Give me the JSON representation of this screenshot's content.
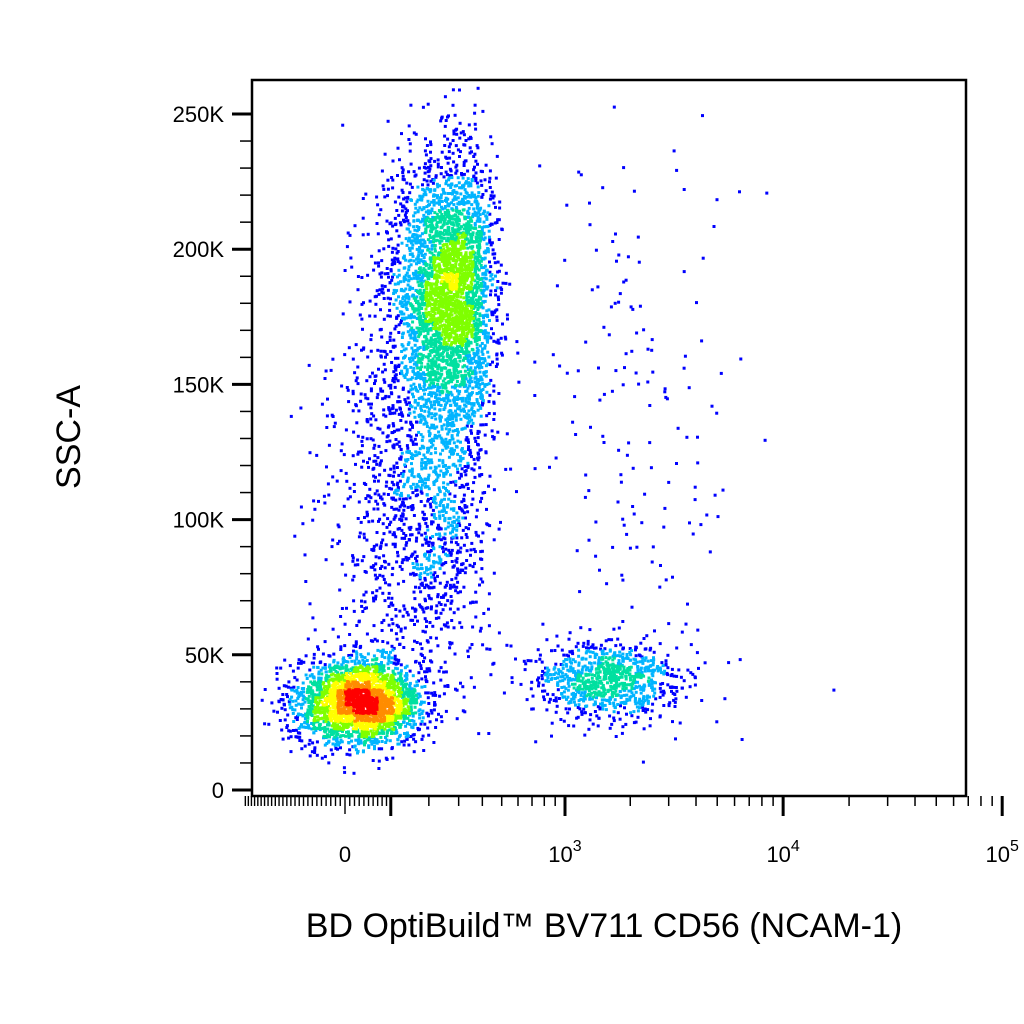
{
  "chart_data": {
    "type": "scatter",
    "style": "density-colored dot plot (flow cytometry)",
    "xlabel": "BD OptiBuild™ BV711 CD56 (NCAM-1)",
    "ylabel": "SSC-A",
    "x_scale": "biexponential",
    "y_scale": "linear",
    "ylim": [
      0,
      262144
    ],
    "xlim": [
      -300,
      262144
    ],
    "y_ticks": [
      {
        "value": 0,
        "label": "0"
      },
      {
        "value": 50000,
        "label": "50K"
      },
      {
        "value": 100000,
        "label": "100K"
      },
      {
        "value": 150000,
        "label": "150K"
      },
      {
        "value": 200000,
        "label": "200K"
      },
      {
        "value": 250000,
        "label": "250K"
      }
    ],
    "x_ticks": [
      {
        "value": 0,
        "label": "0"
      },
      {
        "value": 1000,
        "label": "10",
        "sup": "3"
      },
      {
        "value": 10000,
        "label": "10",
        "sup": "4"
      },
      {
        "value": 100000,
        "label": "10",
        "sup": "5"
      }
    ],
    "density_colors": [
      "#0000ff",
      "#00b4ff",
      "#00e0a0",
      "#7fff00",
      "#ffff00",
      "#ff8c00",
      "#ff0000"
    ],
    "populations": [
      {
        "name": "",
        "x_center": 30,
        "x_spread": 70,
        "y_center": 33000,
        "y_spread": 8000,
        "count": 2600
      },
      {
        "name": "",
        "x_center": 260,
        "x_spread": 90,
        "y_center": 185000,
        "y_spread": 25000,
        "count": 3400
      },
      {
        "name": "",
        "x_center": 180,
        "x_spread": 110,
        "y_center": 110000,
        "y_spread": 32000,
        "count": 1500
      },
      {
        "name": "",
        "x_center": 1500,
        "x_spread": 1.1,
        "y_center": 41000,
        "y_spread": 7000,
        "count": 900
      },
      {
        "name": "",
        "x_center": 2000,
        "x_spread": 1.8,
        "y_center": 130000,
        "y_spread": 60000,
        "count": 180
      }
    ]
  }
}
